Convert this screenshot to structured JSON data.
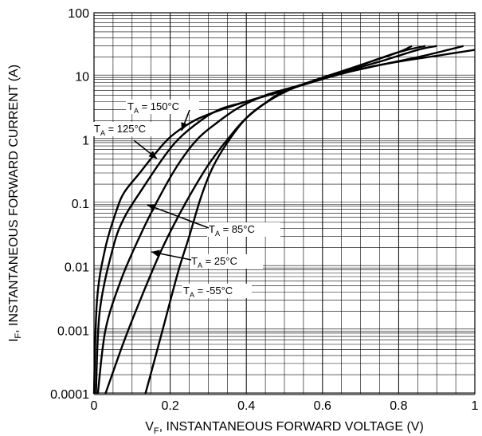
{
  "chart_data": {
    "type": "line",
    "xlabel": {
      "main": "V",
      "sub": "F",
      "rest": ", INSTANTANEOUS FORWARD VOLTAGE (V)"
    },
    "ylabel": {
      "main": "I",
      "sub": "F",
      "rest": ", INSTANTANEOUS FORWARD CURRENT (A)"
    },
    "xlim": [
      0,
      1
    ],
    "ylim": [
      0.0001,
      100
    ],
    "yscale": "log",
    "grid": true,
    "xticks": [
      {
        "v": 0,
        "label": "0"
      },
      {
        "v": 0.2,
        "label": "0.2"
      },
      {
        "v": 0.4,
        "label": "0.4"
      },
      {
        "v": 0.6,
        "label": "0.6"
      },
      {
        "v": 0.8,
        "label": "0.8"
      },
      {
        "v": 1,
        "label": "1"
      }
    ],
    "yticks": [
      {
        "v": 100,
        "label": "100"
      },
      {
        "v": 10,
        "label": "10"
      },
      {
        "v": 1,
        "label": "1"
      },
      {
        "v": 0.1,
        "label": "0.1"
      },
      {
        "v": 0.01,
        "label": "0.01"
      },
      {
        "v": 0.001,
        "label": "0.001"
      },
      {
        "v": 0.0001,
        "label": "0.0001"
      }
    ],
    "series": [
      {
        "name": "150°C",
        "points": [
          [
            0,
            0.0001
          ],
          [
            0.008,
            0.003
          ],
          [
            0.03,
            0.02
          ],
          [
            0.06,
            0.08
          ],
          [
            0.08,
            0.15
          ],
          [
            0.12,
            0.3
          ],
          [
            0.16,
            0.6
          ],
          [
            0.2,
            1.1
          ],
          [
            0.25,
            1.8
          ],
          [
            0.3,
            2.5
          ],
          [
            0.4,
            4
          ],
          [
            0.5,
            6
          ],
          [
            0.6,
            9.5
          ],
          [
            0.7,
            15
          ],
          [
            0.8,
            24
          ],
          [
            0.835,
            30
          ]
        ]
      },
      {
        "name": "125°C",
        "points": [
          [
            0.005,
            0.0001
          ],
          [
            0.015,
            0.002
          ],
          [
            0.05,
            0.02
          ],
          [
            0.08,
            0.06
          ],
          [
            0.13,
            0.18
          ],
          [
            0.18,
            0.5
          ],
          [
            0.22,
            1
          ],
          [
            0.28,
            2
          ],
          [
            0.33,
            3
          ],
          [
            0.4,
            4
          ],
          [
            0.5,
            6
          ],
          [
            0.6,
            9.5
          ],
          [
            0.7,
            15
          ],
          [
            0.8,
            24
          ],
          [
            0.87,
            30
          ]
        ]
      },
      {
        "name": "85°C",
        "points": [
          [
            0.01,
            0.0001
          ],
          [
            0.03,
            0.001
          ],
          [
            0.07,
            0.006
          ],
          [
            0.12,
            0.03
          ],
          [
            0.17,
            0.12
          ],
          [
            0.22,
            0.4
          ],
          [
            0.27,
            1
          ],
          [
            0.32,
            1.8
          ],
          [
            0.38,
            3.2
          ],
          [
            0.45,
            5
          ],
          [
            0.55,
            7.5
          ],
          [
            0.65,
            11.5
          ],
          [
            0.75,
            17
          ],
          [
            0.85,
            26
          ],
          [
            0.9,
            30
          ]
        ]
      },
      {
        "name": "25°C",
        "points": [
          [
            0.03,
            0.0001
          ],
          [
            0.08,
            0.0007
          ],
          [
            0.13,
            0.004
          ],
          [
            0.18,
            0.02
          ],
          [
            0.24,
            0.1
          ],
          [
            0.3,
            0.4
          ],
          [
            0.35,
            1
          ],
          [
            0.4,
            2.2
          ],
          [
            0.47,
            4.5
          ],
          [
            0.55,
            7.5
          ],
          [
            0.65,
            11
          ],
          [
            0.75,
            15
          ],
          [
            0.85,
            20
          ],
          [
            0.93,
            26
          ],
          [
            0.97,
            30
          ]
        ]
      },
      {
        "name": "-55°C",
        "points": [
          [
            0.135,
            0.0001
          ],
          [
            0.18,
            0.001
          ],
          [
            0.22,
            0.008
          ],
          [
            0.25,
            0.03
          ],
          [
            0.28,
            0.12
          ],
          [
            0.31,
            0.35
          ],
          [
            0.35,
            0.9
          ],
          [
            0.4,
            2.2
          ],
          [
            0.45,
            3.8
          ],
          [
            0.5,
            5.8
          ],
          [
            0.6,
            9
          ],
          [
            0.7,
            13
          ],
          [
            0.8,
            17
          ],
          [
            0.9,
            21
          ],
          [
            1.0,
            26
          ]
        ]
      }
    ],
    "annotations": [
      {
        "series": "150°C",
        "prefix": "T",
        "sub": "A",
        "text": " = 150°C"
      },
      {
        "series": "125°C",
        "prefix": "T",
        "sub": "A",
        "text": " = 125°C"
      },
      {
        "series": "85°C",
        "prefix": "T",
        "sub": "A",
        "text": " = 85°C"
      },
      {
        "series": "25°C",
        "prefix": "T",
        "sub": "A",
        "text": " = 25°C"
      },
      {
        "series": "-55°C",
        "prefix": "T",
        "sub": "A",
        "text": " = -55°C"
      }
    ]
  }
}
